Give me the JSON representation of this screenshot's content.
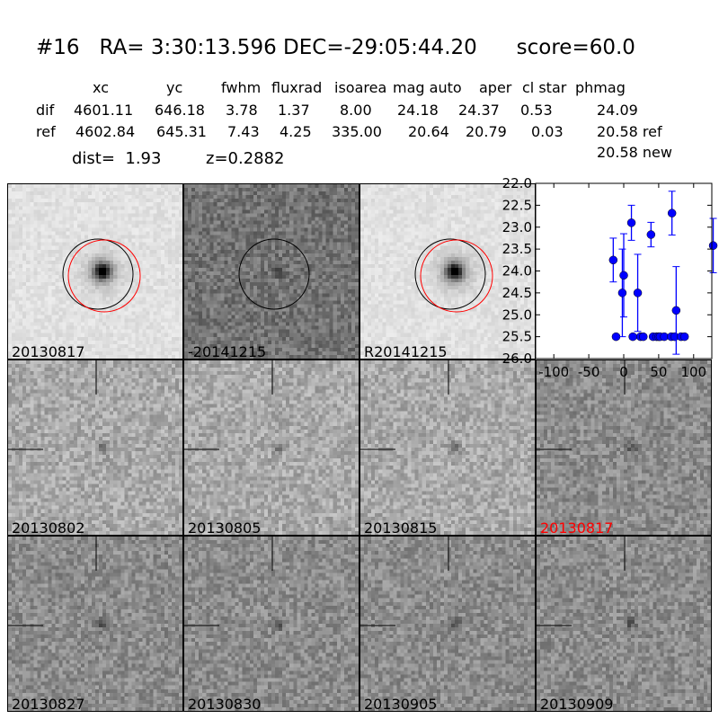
{
  "title": "#16   RA= 3:30:13.596 DEC=-29:05:44.20      score=60.0",
  "table": {
    "headers": [
      "xc",
      "yc",
      "fwhm",
      "fluxrad",
      "isoarea",
      "mag auto",
      "aper",
      "cl star",
      "phmag"
    ],
    "rows": [
      {
        "label": "dif",
        "values": [
          "4601.11",
          "646.18",
          "3.78",
          "1.37",
          "8.00",
          "24.18",
          "24.37",
          "0.53",
          "24.09"
        ]
      },
      {
        "label": "ref",
        "values": [
          "4602.84",
          "645.31",
          "7.43",
          "4.25",
          "335.00",
          "20.64",
          "20.79",
          "0.03",
          "20.58 ref"
        ]
      }
    ],
    "extra": "20.58 new",
    "dist": "dist=  1.93",
    "z": "z=0.2882"
  },
  "stamps": [
    {
      "label": "20130817",
      "tone": "light",
      "circles": true,
      "label_color": "#000000"
    },
    {
      "label": "-20141215",
      "tone": "dark",
      "circles": "black",
      "label_color": "#000000"
    },
    {
      "label": "R20141215",
      "tone": "light",
      "circles": true,
      "label_color": "#000000"
    },
    {
      "label": "20130802",
      "tone": "mid",
      "label_color": "#000000"
    },
    {
      "label": "20130805",
      "tone": "mid",
      "label_color": "#000000"
    },
    {
      "label": "20130815",
      "tone": "mid",
      "label_color": "#000000"
    },
    {
      "label": "20130817",
      "tone": "mid2",
      "label_color": "#ff0000"
    },
    {
      "label": "20130827",
      "tone": "mid2",
      "label_color": "#000000"
    },
    {
      "label": "20130830",
      "tone": "mid2",
      "label_color": "#000000"
    },
    {
      "label": "20130905",
      "tone": "mid2",
      "label_color": "#000000"
    },
    {
      "label": "20130909",
      "tone": "mid2",
      "label_color": "#000000"
    }
  ],
  "chart_data": {
    "type": "scatter",
    "xlim": [
      -126,
      126
    ],
    "ylim": [
      26.0,
      22.0
    ],
    "y_inverted": true,
    "xticks": [
      "-100",
      "-50",
      "0",
      "50",
      "100"
    ],
    "yticks": [
      "22.0",
      "22.5",
      "23.0",
      "23.5",
      "24.0",
      "24.5",
      "25.0",
      "25.5",
      "26.0"
    ],
    "color": "#0000ff",
    "points": [
      {
        "x": -15,
        "y": 23.75,
        "err": 0.5
      },
      {
        "x": -11,
        "y": 25.5,
        "err": 0.05
      },
      {
        "x": -2,
        "y": 24.5,
        "err": 1.0
      },
      {
        "x": 0,
        "y": 24.1,
        "err": 0.95
      },
      {
        "x": 11,
        "y": 22.9,
        "err": 0.4
      },
      {
        "x": 13,
        "y": 25.5,
        "err": 0.05
      },
      {
        "x": 20,
        "y": 24.5,
        "err": 0.88
      },
      {
        "x": 24,
        "y": 25.5,
        "err": 0.05
      },
      {
        "x": 28,
        "y": 25.5,
        "err": 0.05
      },
      {
        "x": 39,
        "y": 23.17,
        "err": 0.28
      },
      {
        "x": 42,
        "y": 25.5,
        "err": 0.05
      },
      {
        "x": 47,
        "y": 25.5,
        "err": 0.05
      },
      {
        "x": 50,
        "y": 25.5,
        "err": 0.05
      },
      {
        "x": 52,
        "y": 25.5,
        "err": 0.05
      },
      {
        "x": 58,
        "y": 25.5,
        "err": 0.05
      },
      {
        "x": 68,
        "y": 25.5,
        "err": 0.05
      },
      {
        "x": 69,
        "y": 22.68,
        "err": 0.5
      },
      {
        "x": 73,
        "y": 25.5,
        "err": 0.05
      },
      {
        "x": 75,
        "y": 24.9,
        "err": 1.0
      },
      {
        "x": 82,
        "y": 25.5,
        "err": 0.05
      },
      {
        "x": 87,
        "y": 25.5,
        "err": 0.05
      },
      {
        "x": 128,
        "y": 23.42,
        "err": 0.62
      }
    ]
  }
}
